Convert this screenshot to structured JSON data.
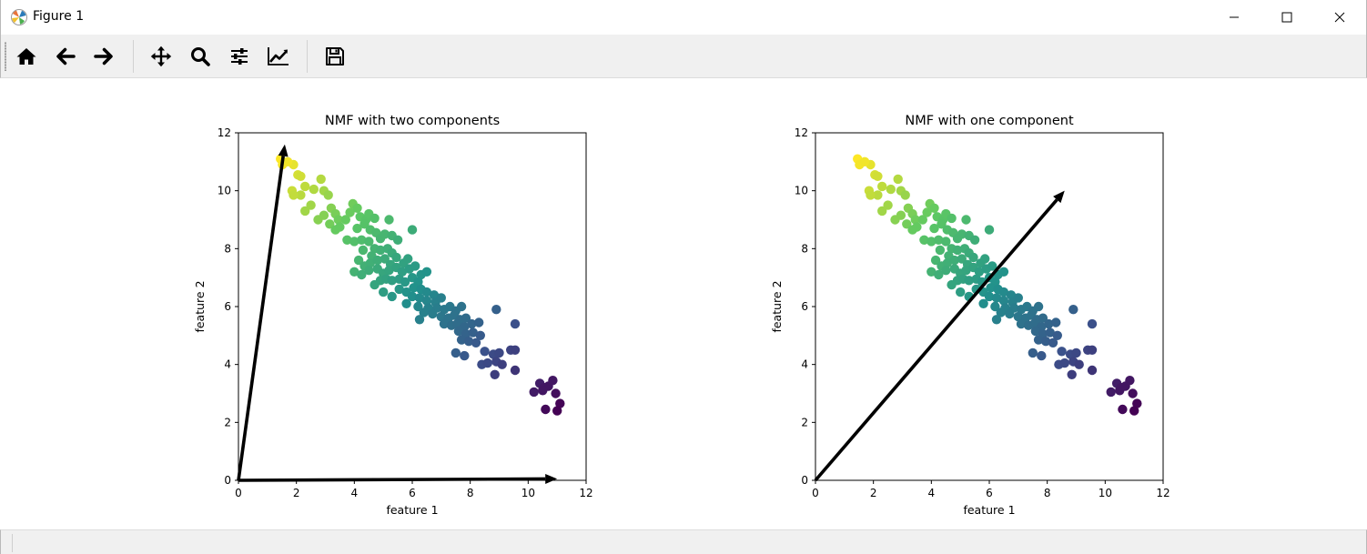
{
  "window": {
    "title": "Figure 1",
    "minimize_icon": "minimize-icon",
    "maximize_icon": "maximize-icon",
    "close_icon": "close-icon"
  },
  "toolbar": {
    "buttons": [
      {
        "name": "home",
        "icon": "home-icon"
      },
      {
        "name": "back",
        "icon": "arrow-left-icon"
      },
      {
        "name": "forward",
        "icon": "arrow-right-icon"
      },
      {
        "name": "pan",
        "icon": "move-icon"
      },
      {
        "name": "zoom",
        "icon": "magnifier-icon"
      },
      {
        "name": "configure-subplots",
        "icon": "sliders-icon"
      },
      {
        "name": "edit-axis",
        "icon": "line-chart-icon"
      },
      {
        "name": "save",
        "icon": "floppy-disk-icon"
      }
    ]
  },
  "colors": {
    "viridis_low": "#440154",
    "viridis_mid": "#21918c",
    "viridis_high": "#fde725",
    "arrow": "#000000"
  },
  "chart_data": [
    {
      "type": "scatter",
      "title": "NMF with two components",
      "xlabel": "feature 1",
      "ylabel": "feature 2",
      "xlim": [
        0,
        12
      ],
      "ylim": [
        0,
        12
      ],
      "xticks": [
        0,
        2,
        4,
        6,
        8,
        10,
        12
      ],
      "yticks": [
        0,
        2,
        4,
        6,
        8,
        10,
        12
      ],
      "colormap": "viridis",
      "arrows": [
        {
          "from": [
            0,
            0
          ],
          "to": [
            1.6,
            11.6
          ]
        },
        {
          "from": [
            0,
            0
          ],
          "to": [
            11.0,
            0.05
          ]
        }
      ]
    },
    {
      "type": "scatter",
      "title": "NMF with one component",
      "xlabel": "feature 1",
      "ylabel": "feature 2",
      "xlim": [
        0,
        12
      ],
      "ylim": [
        0,
        12
      ],
      "xticks": [
        0,
        2,
        4,
        6,
        8,
        10,
        12
      ],
      "yticks": [
        0,
        2,
        4,
        6,
        8,
        10,
        12
      ],
      "colormap": "viridis",
      "arrows": [
        {
          "from": [
            0,
            0
          ],
          "to": [
            8.6,
            10.0
          ]
        }
      ]
    }
  ],
  "points": [
    [
      1.45,
      11.1
    ],
    [
      1.52,
      10.9
    ],
    [
      1.9,
      10.9
    ],
    [
      1.7,
      11.0
    ],
    [
      2.05,
      10.55
    ],
    [
      2.15,
      10.5
    ],
    [
      1.85,
      10.0
    ],
    [
      2.15,
      9.85
    ],
    [
      1.9,
      9.85
    ],
    [
      2.3,
      10.15
    ],
    [
      2.6,
      10.05
    ],
    [
      2.85,
      10.4
    ],
    [
      2.95,
      10.0
    ],
    [
      3.1,
      9.85
    ],
    [
      2.5,
      9.5
    ],
    [
      2.3,
      9.3
    ],
    [
      2.75,
      9.0
    ],
    [
      2.95,
      9.15
    ],
    [
      3.2,
      9.4
    ],
    [
      3.35,
      9.2
    ],
    [
      3.45,
      9.0
    ],
    [
      3.15,
      8.85
    ],
    [
      3.35,
      8.65
    ],
    [
      3.5,
      8.75
    ],
    [
      3.7,
      9.0
    ],
    [
      3.85,
      9.25
    ],
    [
      3.95,
      9.55
    ],
    [
      4.1,
      9.4
    ],
    [
      4.2,
      9.1
    ],
    [
      4.4,
      9.0
    ],
    [
      4.5,
      9.2
    ],
    [
      4.7,
      9.05
    ],
    [
      5.2,
      9.0
    ],
    [
      4.35,
      8.85
    ],
    [
      4.1,
      8.7
    ],
    [
      4.55,
      8.65
    ],
    [
      4.75,
      8.55
    ],
    [
      4.9,
      8.35
    ],
    [
      5.05,
      8.5
    ],
    [
      5.3,
      8.45
    ],
    [
      5.5,
      8.3
    ],
    [
      3.75,
      8.3
    ],
    [
      4.0,
      8.25
    ],
    [
      4.25,
      8.3
    ],
    [
      4.5,
      8.25
    ],
    [
      4.7,
      8.0
    ],
    [
      4.9,
      7.95
    ],
    [
      5.15,
      8.0
    ],
    [
      5.3,
      7.85
    ],
    [
      4.3,
      7.95
    ],
    [
      4.6,
      7.75
    ],
    [
      4.15,
      7.6
    ],
    [
      4.35,
      7.4
    ],
    [
      4.55,
      7.5
    ],
    [
      4.8,
      7.6
    ],
    [
      5.05,
      7.65
    ],
    [
      5.25,
      7.45
    ],
    [
      5.45,
      7.7
    ],
    [
      5.7,
      7.5
    ],
    [
      5.85,
      7.65
    ],
    [
      4.0,
      7.2
    ],
    [
      4.25,
      7.1
    ],
    [
      4.5,
      7.25
    ],
    [
      4.8,
      7.3
    ],
    [
      5.0,
      7.15
    ],
    [
      5.2,
      7.25
    ],
    [
      5.45,
      7.35
    ],
    [
      5.65,
      7.2
    ],
    [
      5.9,
      7.3
    ],
    [
      6.1,
      7.4
    ],
    [
      6.3,
      7.1
    ],
    [
      6.5,
      7.2
    ],
    [
      4.9,
      6.9
    ],
    [
      5.1,
      6.95
    ],
    [
      5.3,
      6.9
    ],
    [
      5.55,
      6.95
    ],
    [
      5.75,
      6.85
    ],
    [
      6.0,
      7.0
    ],
    [
      6.2,
      6.85
    ],
    [
      4.7,
      6.75
    ],
    [
      5.55,
      6.6
    ],
    [
      5.8,
      6.5
    ],
    [
      6.05,
      6.65
    ],
    [
      6.3,
      6.6
    ],
    [
      6.5,
      6.5
    ],
    [
      6.75,
      6.4
    ],
    [
      5.3,
      6.35
    ],
    [
      5.0,
      6.5
    ],
    [
      6.0,
      6.35
    ],
    [
      6.25,
      6.3
    ],
    [
      6.5,
      6.2
    ],
    [
      6.8,
      6.15
    ],
    [
      7.0,
      6.3
    ],
    [
      5.8,
      6.1
    ],
    [
      6.2,
      6.0
    ],
    [
      6.55,
      5.95
    ],
    [
      6.85,
      5.95
    ],
    [
      7.1,
      5.9
    ],
    [
      7.3,
      6.0
    ],
    [
      7.5,
      5.85
    ],
    [
      7.7,
      6.0
    ],
    [
      6.4,
      5.8
    ],
    [
      6.7,
      5.75
    ],
    [
      7.0,
      5.65
    ],
    [
      7.25,
      5.6
    ],
    [
      7.45,
      5.7
    ],
    [
      7.65,
      5.55
    ],
    [
      7.85,
      5.6
    ],
    [
      6.25,
      5.55
    ],
    [
      7.1,
      5.4
    ],
    [
      7.35,
      5.35
    ],
    [
      7.55,
      5.4
    ],
    [
      7.8,
      5.3
    ],
    [
      8.05,
      5.4
    ],
    [
      8.3,
      5.45
    ],
    [
      7.6,
      5.15
    ],
    [
      7.85,
      5.05
    ],
    [
      8.1,
      5.1
    ],
    [
      8.35,
      5.0
    ],
    [
      7.7,
      4.85
    ],
    [
      7.95,
      4.8
    ],
    [
      8.2,
      4.75
    ],
    [
      7.5,
      4.4
    ],
    [
      7.8,
      4.3
    ],
    [
      8.5,
      4.45
    ],
    [
      8.8,
      4.35
    ],
    [
      9.0,
      4.4
    ],
    [
      9.4,
      4.5
    ],
    [
      8.9,
      4.1
    ],
    [
      8.4,
      4.0
    ],
    [
      8.6,
      4.05
    ],
    [
      9.1,
      4.0
    ],
    [
      8.85,
      3.65
    ],
    [
      9.55,
      3.8
    ],
    [
      9.55,
      4.5
    ],
    [
      8.9,
      5.9
    ],
    [
      9.55,
      5.4
    ],
    [
      6.0,
      8.65
    ],
    [
      10.2,
      3.05
    ],
    [
      10.4,
      3.35
    ],
    [
      10.55,
      3.2
    ],
    [
      10.7,
      3.25
    ],
    [
      10.85,
      3.45
    ],
    [
      10.5,
      3.1
    ],
    [
      10.95,
      3.0
    ],
    [
      11.1,
      2.65
    ],
    [
      10.6,
      2.45
    ],
    [
      11.0,
      2.4
    ]
  ]
}
